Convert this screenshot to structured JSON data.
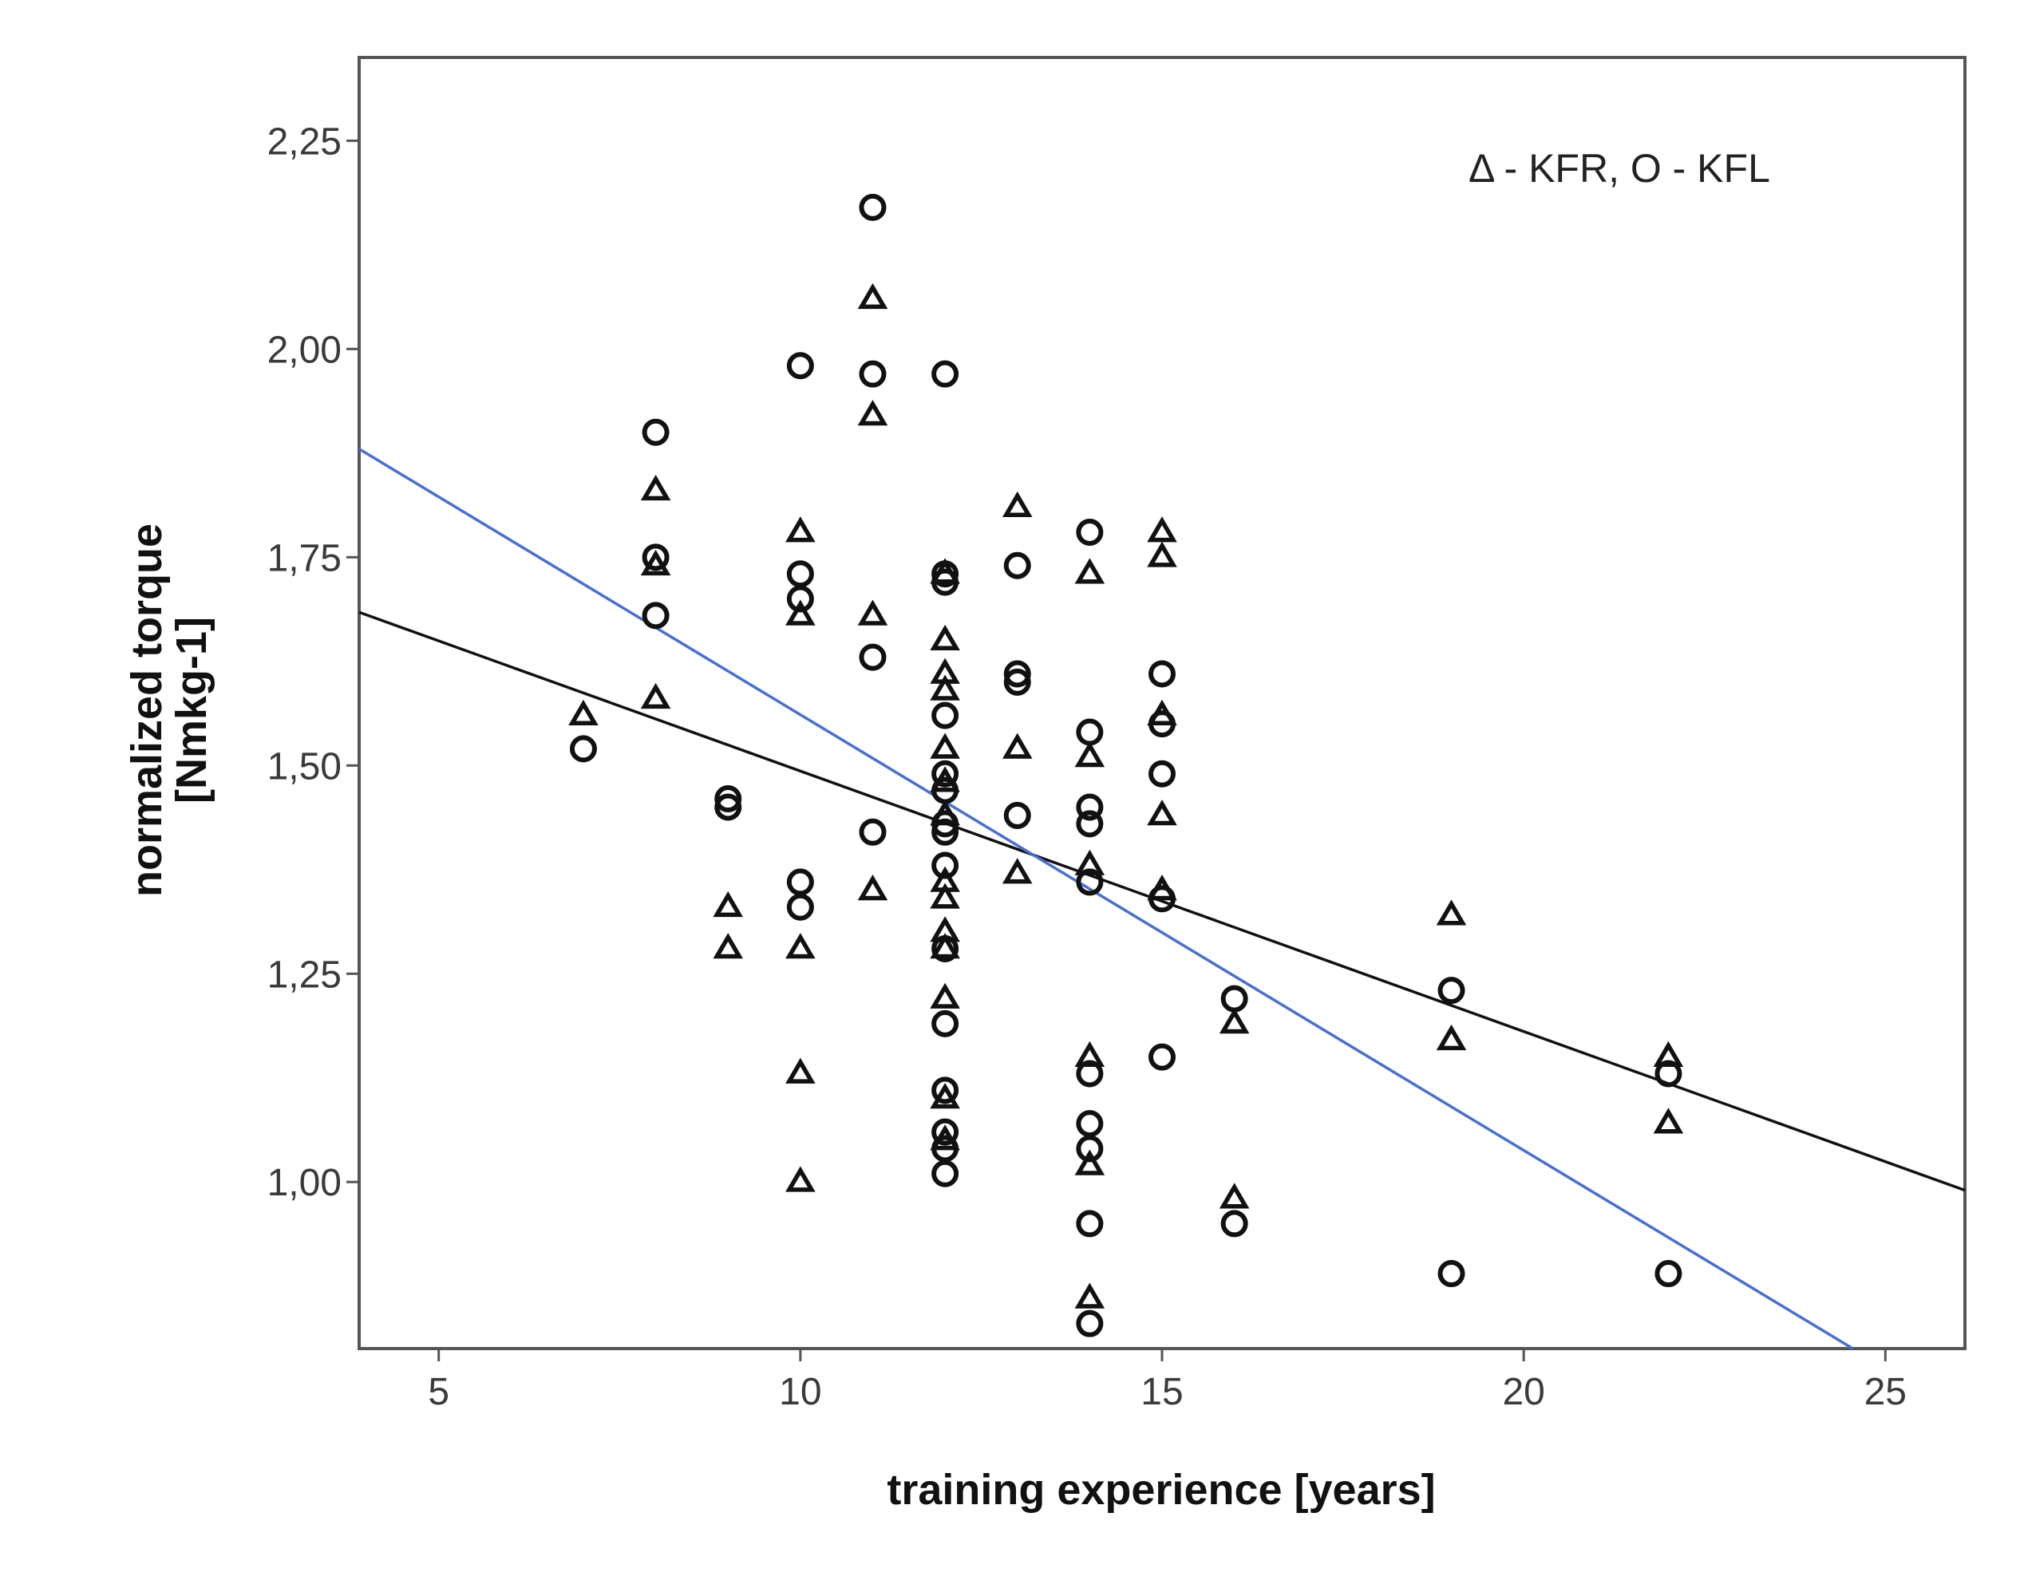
{
  "chart_data": {
    "type": "scatter",
    "title": "",
    "xlabel": "training experience [years]",
    "ylabel_line1": "normalized torque",
    "ylabel_line2": "[Nmkg-1]",
    "xlim": [
      3.9,
      26.1
    ],
    "ylim": [
      0.8,
      2.35
    ],
    "xticks": [
      5,
      10,
      15,
      20,
      25
    ],
    "xtick_labels": [
      "5",
      "10",
      "15",
      "20",
      "25"
    ],
    "yticks": [
      1.0,
      1.25,
      1.5,
      1.75,
      2.0,
      2.25
    ],
    "ytick_labels": [
      "1,00",
      "1,25",
      "1,50",
      "1,75",
      "2,00",
      "2,25"
    ],
    "legend_text": "Δ - KFR, O - KFL",
    "grid": false,
    "series": [
      {
        "name": "KFR",
        "marker": "triangle",
        "points": [
          {
            "x": 7,
            "y": 1.56
          },
          {
            "x": 8,
            "y": 1.83
          },
          {
            "x": 8,
            "y": 1.74
          },
          {
            "x": 8,
            "y": 1.58
          },
          {
            "x": 9,
            "y": 1.33
          },
          {
            "x": 9,
            "y": 1.28
          },
          {
            "x": 10,
            "y": 1.78
          },
          {
            "x": 10,
            "y": 1.68
          },
          {
            "x": 10,
            "y": 1.28
          },
          {
            "x": 10,
            "y": 1.13
          },
          {
            "x": 10,
            "y": 1.0
          },
          {
            "x": 11,
            "y": 2.06
          },
          {
            "x": 11,
            "y": 1.92
          },
          {
            "x": 11,
            "y": 1.68
          },
          {
            "x": 11,
            "y": 1.35
          },
          {
            "x": 12,
            "y": 1.73
          },
          {
            "x": 12,
            "y": 1.65
          },
          {
            "x": 12,
            "y": 1.61
          },
          {
            "x": 12,
            "y": 1.59
          },
          {
            "x": 12,
            "y": 1.52
          },
          {
            "x": 12,
            "y": 1.48
          },
          {
            "x": 12,
            "y": 1.44
          },
          {
            "x": 12,
            "y": 1.36
          },
          {
            "x": 12,
            "y": 1.34
          },
          {
            "x": 12,
            "y": 1.3
          },
          {
            "x": 12,
            "y": 1.28
          },
          {
            "x": 12,
            "y": 1.22
          },
          {
            "x": 12,
            "y": 1.1
          },
          {
            "x": 12,
            "y": 1.05
          },
          {
            "x": 13,
            "y": 1.81
          },
          {
            "x": 13,
            "y": 1.52
          },
          {
            "x": 13,
            "y": 1.37
          },
          {
            "x": 14,
            "y": 1.73
          },
          {
            "x": 14,
            "y": 1.51
          },
          {
            "x": 14,
            "y": 1.38
          },
          {
            "x": 14,
            "y": 1.15
          },
          {
            "x": 14,
            "y": 1.02
          },
          {
            "x": 14,
            "y": 0.86
          },
          {
            "x": 15,
            "y": 1.78
          },
          {
            "x": 15,
            "y": 1.75
          },
          {
            "x": 15,
            "y": 1.56
          },
          {
            "x": 15,
            "y": 1.44
          },
          {
            "x": 15,
            "y": 1.35
          },
          {
            "x": 16,
            "y": 1.19
          },
          {
            "x": 16,
            "y": 0.98
          },
          {
            "x": 19,
            "y": 1.32
          },
          {
            "x": 19,
            "y": 1.17
          },
          {
            "x": 22,
            "y": 1.15
          },
          {
            "x": 22,
            "y": 1.07
          }
        ]
      },
      {
        "name": "KFL",
        "marker": "circle",
        "points": [
          {
            "x": 7,
            "y": 1.52
          },
          {
            "x": 8,
            "y": 1.9
          },
          {
            "x": 8,
            "y": 1.75
          },
          {
            "x": 8,
            "y": 1.68
          },
          {
            "x": 9,
            "y": 1.46
          },
          {
            "x": 9,
            "y": 1.45
          },
          {
            "x": 10,
            "y": 1.98
          },
          {
            "x": 10,
            "y": 1.73
          },
          {
            "x": 10,
            "y": 1.7
          },
          {
            "x": 10,
            "y": 1.36
          },
          {
            "x": 10,
            "y": 1.33
          },
          {
            "x": 11,
            "y": 2.17
          },
          {
            "x": 11,
            "y": 1.97
          },
          {
            "x": 11,
            "y": 1.63
          },
          {
            "x": 11,
            "y": 1.42
          },
          {
            "x": 12,
            "y": 1.97
          },
          {
            "x": 12,
            "y": 1.73
          },
          {
            "x": 12,
            "y": 1.72
          },
          {
            "x": 12,
            "y": 1.56
          },
          {
            "x": 12,
            "y": 1.49
          },
          {
            "x": 12,
            "y": 1.47
          },
          {
            "x": 12,
            "y": 1.43
          },
          {
            "x": 12,
            "y": 1.42
          },
          {
            "x": 12,
            "y": 1.38
          },
          {
            "x": 12,
            "y": 1.28
          },
          {
            "x": 12,
            "y": 1.19
          },
          {
            "x": 12,
            "y": 1.11
          },
          {
            "x": 12,
            "y": 1.06
          },
          {
            "x": 12,
            "y": 1.04
          },
          {
            "x": 12,
            "y": 1.01
          },
          {
            "x": 13,
            "y": 1.74
          },
          {
            "x": 13,
            "y": 1.61
          },
          {
            "x": 13,
            "y": 1.6
          },
          {
            "x": 13,
            "y": 1.44
          },
          {
            "x": 14,
            "y": 1.78
          },
          {
            "x": 14,
            "y": 1.54
          },
          {
            "x": 14,
            "y": 1.45
          },
          {
            "x": 14,
            "y": 1.43
          },
          {
            "x": 14,
            "y": 1.36
          },
          {
            "x": 14,
            "y": 1.13
          },
          {
            "x": 14,
            "y": 1.07
          },
          {
            "x": 14,
            "y": 1.04
          },
          {
            "x": 14,
            "y": 0.95
          },
          {
            "x": 14,
            "y": 0.83
          },
          {
            "x": 15,
            "y": 1.61
          },
          {
            "x": 15,
            "y": 1.55
          },
          {
            "x": 15,
            "y": 1.49
          },
          {
            "x": 15,
            "y": 1.34
          },
          {
            "x": 15,
            "y": 1.15
          },
          {
            "x": 16,
            "y": 1.22
          },
          {
            "x": 16,
            "y": 0.95
          },
          {
            "x": 19,
            "y": 1.23
          },
          {
            "x": 19,
            "y": 0.89
          },
          {
            "x": 22,
            "y": 1.13
          },
          {
            "x": 22,
            "y": 0.89
          }
        ]
      }
    ],
    "fit_lines": [
      {
        "name": "black-fit",
        "color": "#111111",
        "x": [
          3.9,
          26.1
        ],
        "y": [
          1.684,
          0.99
        ]
      },
      {
        "name": "blue-fit",
        "color": "#4a6fd1",
        "x": [
          3.9,
          24.55
        ],
        "y": [
          1.88,
          0.8
        ]
      }
    ]
  }
}
